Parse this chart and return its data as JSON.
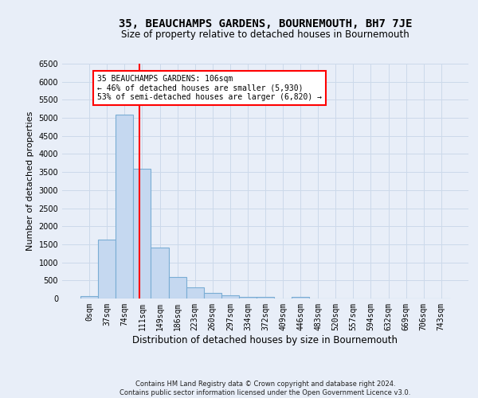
{
  "title": "35, BEAUCHAMPS GARDENS, BOURNEMOUTH, BH7 7JE",
  "subtitle": "Size of property relative to detached houses in Bournemouth",
  "xlabel": "Distribution of detached houses by size in Bournemouth",
  "ylabel": "Number of detached properties",
  "footer_line1": "Contains HM Land Registry data © Crown copyright and database right 2024.",
  "footer_line2": "Contains public sector information licensed under the Open Government Licence v3.0.",
  "bin_labels": [
    "0sqm",
    "37sqm",
    "74sqm",
    "111sqm",
    "149sqm",
    "186sqm",
    "223sqm",
    "260sqm",
    "297sqm",
    "334sqm",
    "372sqm",
    "409sqm",
    "446sqm",
    "483sqm",
    "520sqm",
    "557sqm",
    "594sqm",
    "632sqm",
    "669sqm",
    "706sqm",
    "743sqm"
  ],
  "bar_values": [
    70,
    1630,
    5080,
    3590,
    1410,
    600,
    310,
    155,
    95,
    55,
    50,
    0,
    50,
    0,
    0,
    0,
    0,
    0,
    0,
    0,
    0
  ],
  "bar_color": "#c5d8f0",
  "bar_edge_color": "#7aadd4",
  "grid_color": "#ccd9ea",
  "vline_x": 2.86,
  "vline_color": "red",
  "annotation_text": "35 BEAUCHAMPS GARDENS: 106sqm\n← 46% of detached houses are smaller (5,930)\n53% of semi-detached houses are larger (6,820) →",
  "annotation_box_facecolor": "white",
  "annotation_box_edgecolor": "red",
  "ylim": [
    0,
    6500
  ],
  "yticks": [
    0,
    500,
    1000,
    1500,
    2000,
    2500,
    3000,
    3500,
    4000,
    4500,
    5000,
    5500,
    6000,
    6500
  ],
  "background_color": "#e8eef8",
  "axes_background_color": "#e8eef8",
  "title_fontsize": 10,
  "subtitle_fontsize": 8.5,
  "ylabel_fontsize": 8,
  "xlabel_fontsize": 8.5,
  "tick_fontsize": 7,
  "footer_fontsize": 6
}
